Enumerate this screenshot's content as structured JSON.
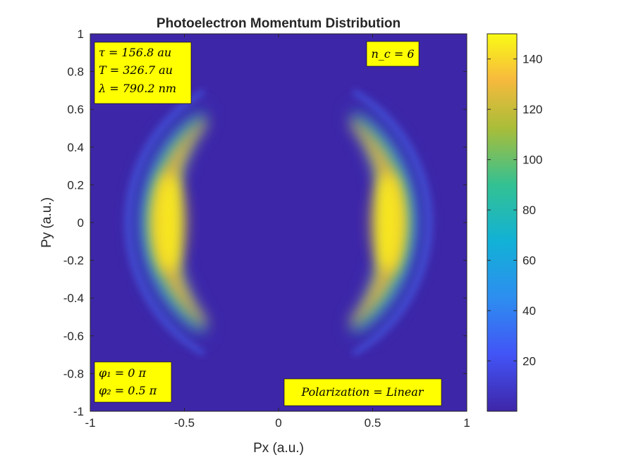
{
  "chart_data": {
    "type": "heatmap",
    "title": "Photoelectron Momentum Distribution",
    "xlabel": "Px (a.u.)",
    "ylabel": "Py (a.u.)",
    "xlim": [
      -1,
      1
    ],
    "ylim": [
      -1,
      1
    ],
    "x_ticks": [
      "-1",
      "-0.5",
      "0",
      "0.5",
      "1"
    ],
    "y_ticks": [
      "1",
      "0.8",
      "0.6",
      "0.4",
      "0.2",
      "0",
      "-0.2",
      "-0.4",
      "-0.6",
      "-0.8",
      "-1"
    ],
    "colorbar": {
      "range": [
        0,
        150
      ],
      "ticks": [
        "20",
        "40",
        "60",
        "80",
        "100",
        "120",
        "140"
      ],
      "colormap": "parula"
    },
    "features": [
      {
        "lobe": "left",
        "peak_px": -0.58,
        "peak_py": 0.0,
        "peak_value": 150
      },
      {
        "lobe": "right",
        "peak_px": 0.58,
        "peak_py": 0.0,
        "peak_value": 150
      }
    ],
    "annotations": {
      "params": [
        "τ = 156.8 au",
        "T = 326.7 au",
        "λ = 790.2 nm"
      ],
      "cycles": "n_c = 6",
      "phases": [
        "φ₁ = 0 π",
        "φ₂ = 0.5 π"
      ],
      "polarization": "Polarization = Linear"
    },
    "annotation_bg": "#ffff00",
    "grid": false
  }
}
